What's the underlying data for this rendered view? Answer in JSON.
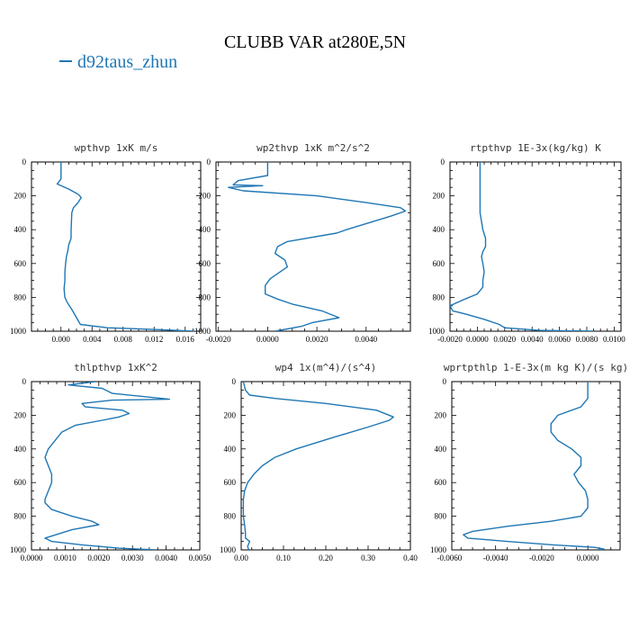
{
  "title": "CLUBB VAR at280E,5N",
  "legend": {
    "label": "d92taus_zhun",
    "color": "#1f77b4"
  },
  "chart_data": [
    {
      "type": "line",
      "title": "wpthvp  1xK m/s",
      "xlim": [
        -0.0038,
        0.018
      ],
      "xticks": [
        0.0,
        0.004,
        0.008,
        0.012,
        0.016
      ],
      "xticklabels": [
        "0.000",
        "0.004",
        "0.008",
        "0.012",
        "0.016"
      ],
      "ylim": [
        1000,
        0
      ],
      "yticks": [
        0,
        200,
        400,
        600,
        800,
        1000
      ],
      "series": [
        {
          "color": "#1f77b4",
          "x": [
            0.0,
            0.0,
            0.0,
            -0.0005,
            0.001,
            0.0022,
            0.0026,
            0.0022,
            0.0016,
            0.0014,
            0.0013,
            0.0013,
            0.001,
            0.0009,
            0.0007,
            0.0006,
            0.0005,
            0.0005,
            0.0004,
            0.0005,
            0.0008,
            0.0015,
            0.0025,
            0.006,
            0.012,
            0.0172
          ],
          "y": [
            0,
            50,
            100,
            130,
            160,
            190,
            210,
            240,
            270,
            300,
            400,
            450,
            490,
            520,
            560,
            600,
            650,
            700,
            750,
            800,
            830,
            880,
            960,
            980,
            990,
            1000
          ]
        }
      ]
    },
    {
      "type": "line",
      "title": "wp2thvp  1xK m^2/s^2",
      "xlim": [
        -0.0021,
        0.0058
      ],
      "xticks": [
        -0.002,
        0.0,
        0.002,
        0.004
      ],
      "xticklabels": [
        "-0.0020",
        "0.0000",
        "0.0020",
        "0.0040"
      ],
      "ylim": [
        1000,
        0
      ],
      "yticks": [
        0,
        200,
        400,
        600,
        800,
        1000
      ],
      "series": [
        {
          "color": "#1f77b4",
          "x": [
            0.0,
            0.0,
            0.0,
            -0.0012,
            -0.0014,
            -0.0002,
            -0.0016,
            -0.001,
            0.002,
            0.004,
            0.0054,
            0.0056,
            0.005,
            0.0032,
            0.0028,
            0.0008,
            0.0004,
            0.0003,
            0.0007,
            0.0008,
            0.0005,
            0.0001,
            -0.0001,
            -0.0001,
            0.0004,
            0.001,
            0.0022,
            0.0029,
            0.0018,
            0.0014,
            0.0003
          ],
          "y": [
            0,
            50,
            80,
            110,
            135,
            140,
            150,
            170,
            200,
            240,
            270,
            290,
            320,
            400,
            420,
            470,
            500,
            540,
            580,
            620,
            650,
            690,
            730,
            780,
            810,
            840,
            880,
            920,
            950,
            970,
            1000
          ]
        }
      ]
    },
    {
      "type": "line",
      "title": "rtpthvp  1E-3x(kg/kg) K",
      "xlim": [
        -0.002,
        0.0105
      ],
      "xticks": [
        -0.002,
        0.0,
        0.002,
        0.004,
        0.006,
        0.008,
        0.01
      ],
      "xticklabels": [
        "-0.0020",
        "0.0000",
        "0.0020",
        "0.0040",
        "0.0060",
        "0.0080",
        "0.0100"
      ],
      "ylim": [
        1000,
        0
      ],
      "yticks": [
        0,
        200,
        400,
        600,
        800,
        1000
      ],
      "series": [
        {
          "color": "#1f77b4",
          "x": [
            0.0002,
            0.0002,
            0.0002,
            0.0002,
            0.0004,
            0.0006,
            0.0006,
            0.0004,
            0.0003,
            0.0004,
            0.0005,
            0.0004,
            0.0004,
            0.0,
            -0.0012,
            -0.002,
            -0.0018,
            -0.0008,
            0.0005,
            0.0016,
            0.002,
            0.0045,
            0.0085
          ],
          "y": [
            0,
            100,
            200,
            300,
            400,
            450,
            500,
            530,
            560,
            600,
            650,
            700,
            740,
            780,
            820,
            850,
            880,
            900,
            930,
            960,
            980,
            995,
            1000
          ]
        }
      ]
    },
    {
      "type": "line",
      "title": "thlpthvp  1xK^2",
      "xlim": [
        0.0,
        0.005
      ],
      "xticks": [
        0.0,
        0.001,
        0.002,
        0.003,
        0.004,
        0.005
      ],
      "xticklabels": [
        "0.0000",
        "0.0010",
        "0.0020",
        "0.0030",
        "0.0040",
        "0.0050"
      ],
      "ylim": [
        1000,
        0
      ],
      "yticks": [
        0,
        200,
        400,
        600,
        800,
        1000
      ],
      "series": [
        {
          "color": "#1f77b4",
          "x": [
            0.0019,
            0.0011,
            0.0021,
            0.0024,
            0.0041,
            0.0024,
            0.0015,
            0.0016,
            0.0027,
            0.0029,
            0.0026,
            0.0021,
            0.0013,
            0.0009,
            0.0007,
            0.0005,
            0.0004,
            0.0005,
            0.0006,
            0.0006,
            0.0005,
            0.0004,
            0.0004,
            0.0006,
            0.0012,
            0.0018,
            0.002,
            0.0012,
            0.0004,
            0.0006,
            0.0015,
            0.0026,
            0.0037
          ],
          "y": [
            0,
            20,
            40,
            70,
            105,
            110,
            130,
            150,
            170,
            190,
            210,
            230,
            260,
            300,
            350,
            400,
            450,
            500,
            550,
            600,
            650,
            700,
            720,
            760,
            800,
            830,
            850,
            880,
            930,
            950,
            970,
            990,
            1000
          ]
        }
      ]
    },
    {
      "type": "line",
      "title": "wp4  1x(m^4)/(s^4)",
      "xlim": [
        0.0,
        0.4
      ],
      "xticks": [
        0.0,
        0.1,
        0.2,
        0.3,
        0.4
      ],
      "xticklabels": [
        "0.00",
        "0.10",
        "0.20",
        "0.30",
        "0.40"
      ],
      "ylim": [
        1000,
        0
      ],
      "yticks": [
        0,
        200,
        400,
        600,
        800,
        1000
      ],
      "series": [
        {
          "color": "#1f77b4",
          "x": [
            0.005,
            0.01,
            0.02,
            0.08,
            0.2,
            0.32,
            0.36,
            0.35,
            0.3,
            0.22,
            0.13,
            0.08,
            0.05,
            0.03,
            0.015,
            0.008,
            0.005,
            0.005,
            0.008,
            0.01,
            0.01,
            0.02,
            0.015,
            0.018
          ],
          "y": [
            0,
            50,
            80,
            100,
            130,
            170,
            210,
            230,
            270,
            330,
            400,
            450,
            500,
            550,
            600,
            650,
            700,
            800,
            850,
            900,
            930,
            950,
            980,
            1000
          ]
        }
      ]
    },
    {
      "type": "line",
      "title": "wprtpthlp  1-E-3x(m kg K)/(s kg)",
      "xlim": [
        -0.0059,
        0.0014
      ],
      "xticks": [
        -0.006,
        -0.004,
        -0.002,
        0.0
      ],
      "xticklabels": [
        "-0.0060",
        "-0.0040",
        "-0.0020",
        "0.0000"
      ],
      "ylim": [
        1000,
        0
      ],
      "yticks": [
        0,
        200,
        400,
        600,
        800,
        1000
      ],
      "series": [
        {
          "color": "#1f77b4",
          "x": [
            0.0,
            0.0,
            0.0,
            -0.0003,
            -0.0013,
            -0.0016,
            -0.0016,
            -0.0013,
            -0.0007,
            -0.0003,
            -0.0003,
            -0.0006,
            -0.0004,
            -0.0001,
            0.0,
            0.0,
            -0.0003,
            -0.0016,
            -0.0035,
            -0.005,
            -0.0054,
            -0.0052,
            -0.0035,
            -0.0015,
            0.0003,
            0.0007,
            0.0005
          ],
          "y": [
            0,
            50,
            100,
            150,
            200,
            250,
            300,
            350,
            400,
            450,
            500,
            550,
            600,
            650,
            700,
            750,
            800,
            830,
            860,
            890,
            910,
            930,
            950,
            970,
            985,
            995,
            1000
          ]
        }
      ]
    }
  ]
}
